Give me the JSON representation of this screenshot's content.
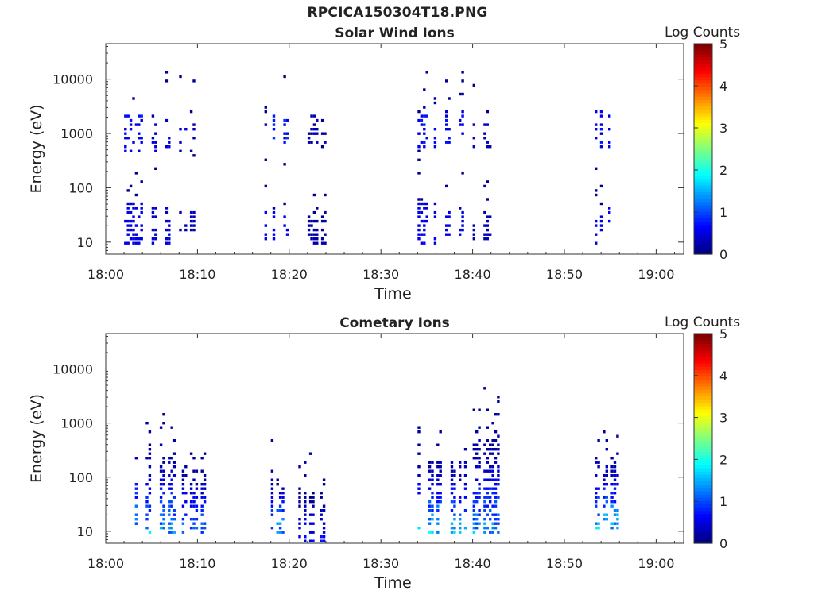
{
  "figure": {
    "title": "RPCICA150304T18.PNG"
  },
  "chart_data": [
    {
      "type": "heatmap",
      "title": "Solar Wind Ions",
      "xlabel": "Time",
      "ylabel": "Energy (eV)",
      "x_ticks": [
        "18:00",
        "18:10",
        "18:20",
        "18:30",
        "18:40",
        "18:50",
        "19:00"
      ],
      "y_ticks": [
        "10",
        "100",
        "1000",
        "10000"
      ],
      "xlim": [
        "18:00",
        "19:03"
      ],
      "ylim": [
        6,
        45000
      ],
      "y_scale": "log",
      "colorbar": {
        "label": "Log Counts",
        "ticks": [
          "0",
          "1",
          "2",
          "3",
          "4",
          "5"
        ],
        "range": [
          0,
          5
        ],
        "colormap": "jet"
      },
      "bursts": [
        {
          "t_start": "18:02",
          "t_end": "18:04",
          "low_band_eV": [
            8,
            60
          ],
          "high_band_eV": [
            400,
            2500
          ],
          "level": 0.5
        },
        {
          "t_start": "18:05",
          "t_end": "18:07",
          "low_band_eV": [
            8,
            50
          ],
          "high_band_eV": [
            400,
            2000
          ],
          "level": 0.4
        },
        {
          "t_start": "18:08",
          "t_end": "18:10",
          "low_band_eV": [
            8,
            40
          ],
          "high_band_eV": [
            400,
            1500
          ],
          "level": 0.3
        },
        {
          "t_start": "18:17",
          "t_end": "18:20",
          "low_band_eV": [
            10,
            40
          ],
          "high_band_eV": [
            500,
            2500
          ],
          "level": 0.6
        },
        {
          "t_start": "18:22",
          "t_end": "18:24",
          "low_band_eV": [
            8,
            25
          ],
          "high_band_eV": [
            600,
            2500
          ],
          "level": 0.2
        },
        {
          "t_start": "18:34",
          "t_end": "18:36",
          "low_band_eV": [
            8,
            60
          ],
          "high_band_eV": [
            500,
            2500
          ],
          "level": 0.5
        },
        {
          "t_start": "18:37",
          "t_end": "18:39",
          "low_band_eV": [
            10,
            40
          ],
          "high_band_eV": [
            600,
            3000
          ],
          "level": 0.5
        },
        {
          "t_start": "18:40",
          "t_end": "18:42",
          "low_band_eV": [
            10,
            30
          ],
          "high_band_eV": [
            500,
            1500
          ],
          "level": 0.3
        },
        {
          "t_start": "18:53",
          "t_end": "18:55",
          "low_band_eV": [
            8,
            50
          ],
          "high_band_eV": [
            500,
            3000
          ],
          "level": 0.5
        }
      ]
    },
    {
      "type": "heatmap",
      "title": "Cometary Ions",
      "xlabel": "Time",
      "ylabel": "Energy (eV)",
      "x_ticks": [
        "18:00",
        "18:10",
        "18:20",
        "18:30",
        "18:40",
        "18:50",
        "19:00"
      ],
      "y_ticks": [
        "10",
        "100",
        "1000",
        "10000"
      ],
      "xlim": [
        "18:00",
        "19:03"
      ],
      "ylim": [
        6,
        45000
      ],
      "y_scale": "log",
      "colorbar": {
        "label": "Log Counts",
        "ticks": [
          "0",
          "1",
          "2",
          "3",
          "4",
          "5"
        ],
        "range": [
          0,
          5
        ],
        "colormap": "jet"
      },
      "bursts": [
        {
          "t_start": "18:02",
          "t_end": "18:05",
          "band_eV": [
            8,
            300
          ],
          "top_eV": 1000,
          "level": 1.8
        },
        {
          "t_start": "18:05",
          "t_end": "18:08",
          "band_eV": [
            8,
            300
          ],
          "top_eV": 1500,
          "level": 1.6
        },
        {
          "t_start": "18:08",
          "t_end": "18:11",
          "band_eV": [
            8,
            150
          ],
          "top_eV": 300,
          "level": 1.4
        },
        {
          "t_start": "18:18",
          "t_end": "18:20",
          "band_eV": [
            8,
            100
          ],
          "top_eV": 800,
          "level": 1.7
        },
        {
          "t_start": "18:21",
          "t_end": "18:24",
          "band_eV": [
            6,
            60
          ],
          "top_eV": 400,
          "level": 0.8
        },
        {
          "t_start": "18:34",
          "t_end": "18:37",
          "band_eV": [
            8,
            200
          ],
          "top_eV": 1000,
          "level": 1.9
        },
        {
          "t_start": "18:37",
          "t_end": "18:40",
          "band_eV": [
            8,
            200
          ],
          "top_eV": 700,
          "level": 1.8
        },
        {
          "t_start": "18:40",
          "t_end": "18:43",
          "band_eV": [
            8,
            400
          ],
          "top_eV": 5000,
          "level": 1.6
        },
        {
          "t_start": "18:53",
          "t_end": "18:56",
          "band_eV": [
            10,
            200
          ],
          "top_eV": 900,
          "level": 1.9
        }
      ]
    }
  ]
}
